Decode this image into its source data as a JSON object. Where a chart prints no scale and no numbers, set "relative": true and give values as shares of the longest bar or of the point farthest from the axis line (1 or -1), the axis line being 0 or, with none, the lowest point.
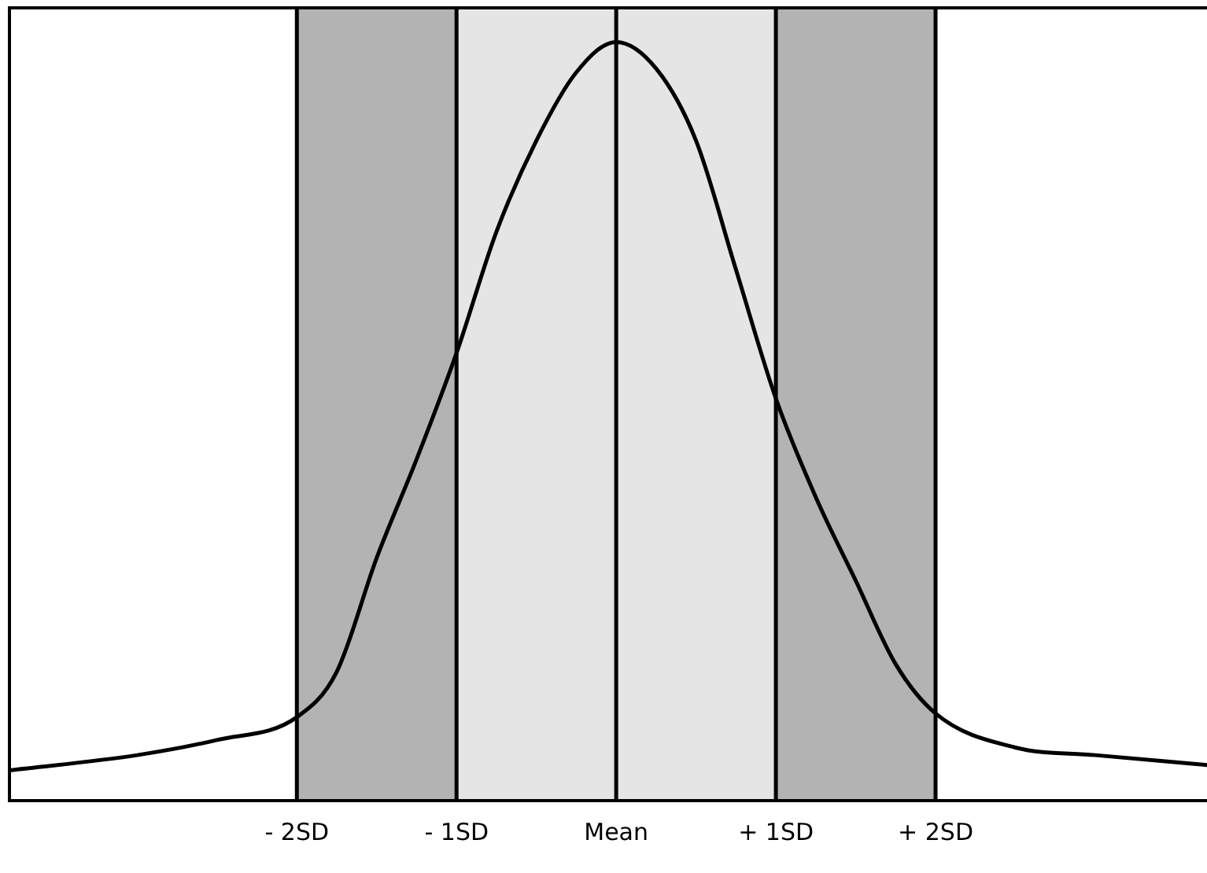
{
  "chart_data": {
    "type": "line",
    "relative": true,
    "x": [
      -3.8,
      -3,
      -2.5,
      -2,
      -1.75,
      -1.5,
      -1.25,
      -1,
      -0.75,
      -0.5,
      -0.25,
      0,
      0.25,
      0.5,
      0.75,
      1,
      1.25,
      1.5,
      1.75,
      2,
      2.5,
      3,
      3.7
    ],
    "series": [
      {
        "color": "#000000",
        "values": [
          0.04,
          0.06,
          0.08,
          0.11,
          0.17,
          0.32,
          0.45,
          0.59,
          0.75,
          0.87,
          0.96,
          1,
          0.965,
          0.87,
          0.7,
          0.53,
          0.4,
          0.29,
          0.18,
          0.115,
          0.07,
          0.06,
          0.047
        ]
      }
    ],
    "xlim": [
      -3.8,
      3.7
    ],
    "xticks": [
      {
        "value": -2,
        "label": "- 2SD"
      },
      {
        "value": -1,
        "label": "- 1SD"
      },
      {
        "value": 0,
        "label": "Mean"
      },
      {
        "value": 1,
        "label": "+ 1SD"
      },
      {
        "value": 2,
        "label": "+ 2SD"
      }
    ],
    "bands": [
      {
        "axis": "x",
        "from": -2,
        "to": -1,
        "color": "#b3b3b3"
      },
      {
        "axis": "x",
        "from": -1,
        "to": 1,
        "color": "#e5e5e5"
      },
      {
        "axis": "x",
        "from": 1,
        "to": 2,
        "color": "#b3b3b3"
      }
    ],
    "ref_lines": [
      {
        "axis": "x",
        "value": -2,
        "color": "#000000"
      },
      {
        "axis": "x",
        "value": -1,
        "color": "#000000"
      },
      {
        "axis": "x",
        "value": 0,
        "color": "#000000"
      },
      {
        "axis": "x",
        "value": 1,
        "color": "#000000"
      },
      {
        "axis": "x",
        "value": 2,
        "color": "#000000"
      }
    ],
    "grid": false,
    "legend": false,
    "marker": "none",
    "line_style": "solid"
  }
}
